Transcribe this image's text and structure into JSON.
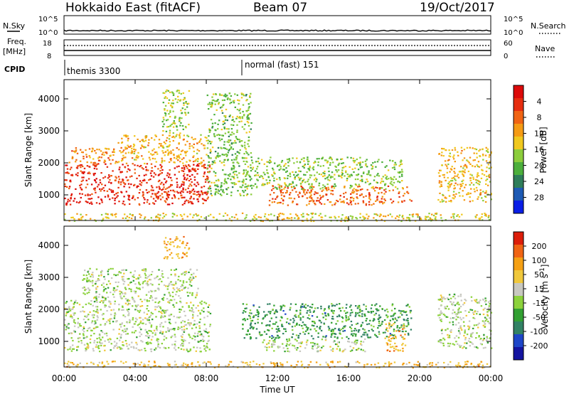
{
  "header": {
    "radar": "Hokkaido East (fitACF)",
    "beam": "Beam 07",
    "date": "19/Oct/2017"
  },
  "top_panel": {
    "nsky_label": "N.Sky",
    "nsearch_label": "N.Search",
    "noise_ticks_left": [
      "10^5",
      "10^0"
    ],
    "noise_ticks_right": [
      "10^5",
      "10^0"
    ],
    "freq_label": "Freq.",
    "freq_unit": "[MHz]",
    "freq_ticks": [
      "18",
      "8"
    ],
    "nave_label": "Nave",
    "nave_ticks": [
      "60",
      "0"
    ],
    "cpid_label": "CPID",
    "cpid_modes": [
      {
        "name": "themis 3300",
        "start_hour": 0
      },
      {
        "name": "normal (fast) 151",
        "start_hour": 10
      }
    ]
  },
  "chart_data": [
    {
      "type": "heatmap",
      "panel": "power",
      "xlabel": "Time UT",
      "ylabel": "Slant Range [km]",
      "x_ticks": [
        "00:00",
        "04:00",
        "08:00",
        "12:00",
        "16:00",
        "20:00",
        "00:00"
      ],
      "x_hours": [
        0,
        4,
        8,
        12,
        16,
        20,
        24
      ],
      "xlim": [
        0,
        24
      ],
      "ylim": [
        200,
        4600
      ],
      "y_ticks": [
        1000,
        2000,
        3000,
        4000
      ],
      "colorbar_label": "Power [dB]",
      "colorbar_ticks": [
        "4",
        "8",
        "12",
        "16",
        "20",
        "24",
        "28"
      ],
      "colorbar_colors": [
        "#0a1ee6",
        "#1e5ab4",
        "#2e7d5a",
        "#4caf3c",
        "#8ccd3c",
        "#f0c81e",
        "#f59b14",
        "#f06414",
        "#e62d0f",
        "#dc0a0a"
      ],
      "regions": [
        {
          "x": [
            0,
            8.2
          ],
          "y": [
            700,
            2000
          ],
          "level": 0.9
        },
        {
          "x": [
            0.2,
            3
          ],
          "y": [
            2000,
            2500
          ],
          "level": 0.72
        },
        {
          "x": [
            3,
            8
          ],
          "y": [
            2000,
            2900
          ],
          "level": 0.62
        },
        {
          "x": [
            5.5,
            7
          ],
          "y": [
            2800,
            4300
          ],
          "level": 0.45
        },
        {
          "x": [
            8,
            10.5
          ],
          "y": [
            1000,
            4200
          ],
          "level": 0.4
        },
        {
          "x": [
            10,
            19
          ],
          "y": [
            1200,
            2200
          ],
          "level": 0.42
        },
        {
          "x": [
            11.5,
            19.5
          ],
          "y": [
            700,
            1300
          ],
          "level": 0.78
        },
        {
          "x": [
            21,
            24
          ],
          "y": [
            800,
            2500
          ],
          "level": 0.6
        },
        {
          "x": [
            0,
            24
          ],
          "y": [
            200,
            450
          ],
          "level": 0.55
        }
      ]
    },
    {
      "type": "heatmap",
      "panel": "velocity",
      "xlabel": "Time UT",
      "ylabel": "Slant Range [km]",
      "x_ticks": [
        "00:00",
        "04:00",
        "08:00",
        "12:00",
        "16:00",
        "20:00",
        "00:00"
      ],
      "x_hours": [
        0,
        4,
        8,
        12,
        16,
        20,
        24
      ],
      "xlim": [
        0,
        24
      ],
      "ylim": [
        200,
        4600
      ],
      "y_ticks": [
        1000,
        2000,
        3000,
        4000
      ],
      "colorbar_label": "Velocity [m s^-1]",
      "colorbar_ticks": [
        "200",
        "100",
        "50",
        "15",
        "-15",
        "-50",
        "-100",
        "-200"
      ],
      "colorbar_colors": [
        "#1414a0",
        "#1e46c8",
        "#328264",
        "#32a032",
        "#8cd23c",
        "#c8c8c0",
        "#f0c83c",
        "#f5a014",
        "#f06414",
        "#dc1e0a"
      ],
      "regions": [
        {
          "x": [
            0,
            8.2
          ],
          "y": [
            700,
            2300
          ],
          "level": 0.5
        },
        {
          "x": [
            1,
            7.5
          ],
          "y": [
            2300,
            3300
          ],
          "level": 0.5
        },
        {
          "x": [
            5.5,
            7
          ],
          "y": [
            3600,
            4300
          ],
          "level": 0.75
        },
        {
          "x": [
            10,
            19.5
          ],
          "y": [
            1100,
            2200
          ],
          "level": 0.3
        },
        {
          "x": [
            11,
            17
          ],
          "y": [
            700,
            1100
          ],
          "level": 0.5
        },
        {
          "x": [
            18,
            19.2
          ],
          "y": [
            700,
            1600
          ],
          "level": 0.75
        },
        {
          "x": [
            21,
            24
          ],
          "y": [
            800,
            2500
          ],
          "level": 0.5
        },
        {
          "x": [
            0,
            24
          ],
          "y": [
            200,
            400
          ],
          "level": 0.7
        }
      ]
    }
  ]
}
